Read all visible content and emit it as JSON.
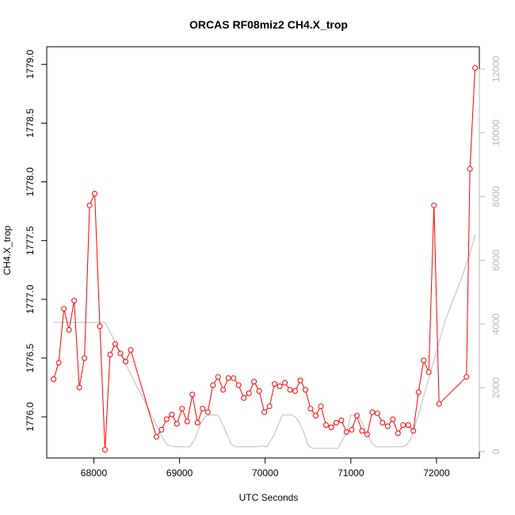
{
  "chart_data": {
    "type": "line",
    "title": "ORCAS RF08miz2 CH4.X_trop",
    "xlabel": "UTC Seconds",
    "ylabel": "CH4.X_trop",
    "xlim": [
      67450,
      72500
    ],
    "ylim": [
      1775.65,
      1779.15
    ],
    "y2lim": [
      -200,
      12700
    ],
    "x_ticks": [
      68000,
      69000,
      70000,
      71000,
      72000
    ],
    "y_ticks": [
      1776.0,
      1776.5,
      1777.0,
      1777.5,
      1778.0,
      1778.5,
      1779.0
    ],
    "y_tick_labels": [
      "1776.0",
      "1776.5",
      "1777.0",
      "1777.5",
      "1778.0",
      "1778.5",
      "1779.0"
    ],
    "y2_ticks": [
      0,
      2000,
      4000,
      6000,
      8000,
      10000,
      12000
    ],
    "grid": false,
    "colors": {
      "primary": "#ff0000",
      "secondary": "#bdbdbd",
      "axis": "#000000",
      "right_axis": "#b8b8b8"
    },
    "series": [
      {
        "axis": "left",
        "style": "line+points",
        "x": [
          67530,
          67590,
          67650,
          67710,
          67770,
          67830,
          67890,
          67950,
          68010,
          68070,
          68130,
          68190,
          68250,
          68310,
          68370,
          68430,
          68730,
          68790,
          68850,
          68910,
          68970,
          69030,
          69090,
          69150,
          69210,
          69270,
          69330,
          69390,
          69450,
          69510,
          69570,
          69630,
          69690,
          69750,
          69810,
          69870,
          69930,
          69990,
          70050,
          70110,
          70170,
          70230,
          70290,
          70350,
          70410,
          70470,
          70530,
          70590,
          70650,
          70710,
          70770,
          70830,
          70890,
          70950,
          71010,
          71070,
          71130,
          71190,
          71250,
          71310,
          71370,
          71430,
          71490,
          71550,
          71610,
          71670,
          71730,
          71790,
          71850,
          71910,
          71970,
          72030,
          72350,
          72390,
          72450
        ],
        "y": [
          1776.32,
          1776.46,
          1776.92,
          1776.74,
          1776.99,
          1776.25,
          1776.5,
          1777.8,
          1777.9,
          1776.77,
          1775.72,
          1776.53,
          1776.62,
          1776.54,
          1776.47,
          1776.57,
          1775.83,
          1775.89,
          1775.98,
          1776.02,
          1775.94,
          1776.07,
          1775.96,
          1776.19,
          1775.95,
          1776.07,
          1776.04,
          1776.27,
          1776.34,
          1776.23,
          1776.33,
          1776.33,
          1776.27,
          1776.16,
          1776.2,
          1776.3,
          1776.22,
          1776.04,
          1776.09,
          1776.28,
          1776.26,
          1776.29,
          1776.23,
          1776.22,
          1776.31,
          1776.23,
          1776.07,
          1776.01,
          1776.09,
          1775.93,
          1775.91,
          1775.95,
          1775.97,
          1775.87,
          1775.89,
          1776.01,
          1775.88,
          1775.85,
          1776.04,
          1776.03,
          1775.95,
          1775.92,
          1775.98,
          1775.86,
          1775.93,
          1775.93,
          1775.88,
          1776.21,
          1776.48,
          1776.38,
          1777.8,
          1776.11,
          1776.34,
          1778.11,
          1778.97
        ]
      },
      {
        "axis": "right",
        "style": "line",
        "x": [
          67530,
          68130,
          68200,
          68300,
          68400,
          68500,
          68600,
          68700,
          68800,
          68860,
          68950,
          69050,
          69120,
          69180,
          69250,
          69300,
          69350,
          69450,
          69530,
          69600,
          69650,
          69700,
          69800,
          69900,
          69960,
          70020,
          70100,
          70200,
          70300,
          70350,
          70400,
          70450,
          70500,
          70550,
          70650,
          70750,
          70850,
          70950,
          71000,
          71050,
          71100,
          71150,
          71200,
          71250,
          71300,
          71400,
          71500,
          71600,
          71650,
          71700,
          71800,
          71900,
          72000,
          72100,
          72200,
          72300,
          72400,
          72450
        ],
        "y": [
          4050,
          4050,
          3700,
          3150,
          2600,
          2050,
          1550,
          1000,
          450,
          200,
          150,
          150,
          150,
          400,
          900,
          1100,
          1150,
          1150,
          700,
          250,
          150,
          150,
          150,
          150,
          180,
          150,
          500,
          1150,
          1150,
          1100,
          900,
          600,
          200,
          100,
          100,
          100,
          100,
          600,
          1150,
          1150,
          1050,
          800,
          500,
          250,
          150,
          150,
          150,
          150,
          200,
          400,
          1250,
          2200,
          3150,
          4100,
          4800,
          5500,
          6300,
          6800
        ]
      }
    ]
  }
}
